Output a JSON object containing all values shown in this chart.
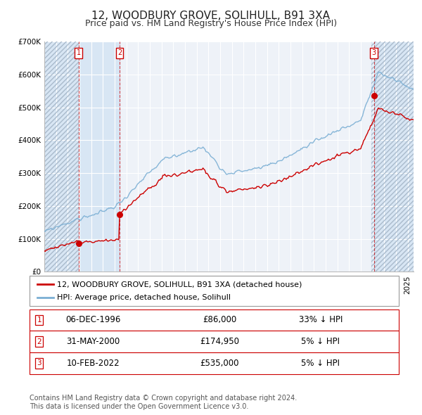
{
  "title": "12, WOODBURY GROVE, SOLIHULL, B91 3XA",
  "subtitle": "Price paid vs. HM Land Registry's House Price Index (HPI)",
  "ylim": [
    0,
    700000
  ],
  "yticks": [
    0,
    100000,
    200000,
    300000,
    400000,
    500000,
    600000,
    700000
  ],
  "ytick_labels": [
    "£0",
    "£100K",
    "£200K",
    "£300K",
    "£400K",
    "£500K",
    "£600K",
    "£700K"
  ],
  "xlim_start": 1994.0,
  "xlim_end": 2025.5,
  "hpi_color": "#7bafd4",
  "price_color": "#cc0000",
  "background_color": "#ffffff",
  "plot_bg_color": "#eef2f8",
  "grid_color": "#ffffff",
  "shade1_start": 1996.92,
  "shade1_end": 2000.42,
  "shade_color": "#d8e6f4",
  "shade2_start": 2021.92,
  "shade2_end": 2025.5,
  "hatch_end": 1996.92,
  "sale1_x": 1996.92,
  "sale1_y": 86000,
  "sale2_x": 2000.42,
  "sale2_y": 174950,
  "sale3_x": 2022.11,
  "sale3_y": 535000,
  "legend_label_price": "12, WOODBURY GROVE, SOLIHULL, B91 3XA (detached house)",
  "legend_label_hpi": "HPI: Average price, detached house, Solihull",
  "table_rows": [
    {
      "num": "1",
      "date": "06-DEC-1996",
      "price": "£86,000",
      "hpi": "33% ↓ HPI"
    },
    {
      "num": "2",
      "date": "31-MAY-2000",
      "price": "£174,950",
      "hpi": "5% ↓ HPI"
    },
    {
      "num": "3",
      "date": "10-FEB-2022",
      "price": "£535,000",
      "hpi": "5% ↓ HPI"
    }
  ],
  "footnote": "Contains HM Land Registry data © Crown copyright and database right 2024.\nThis data is licensed under the Open Government Licence v3.0.",
  "title_fontsize": 11,
  "subtitle_fontsize": 9,
  "tick_fontsize": 7.5,
  "legend_fontsize": 8,
  "table_fontsize": 8.5,
  "footnote_fontsize": 7
}
